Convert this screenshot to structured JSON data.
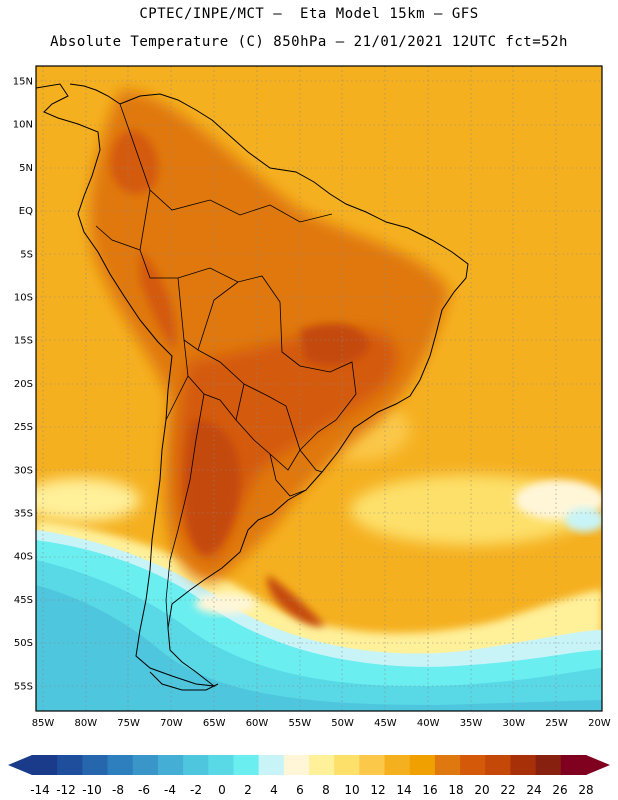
{
  "header": {
    "line1": "CPTEC/INPE/MCT –  Eta Model 15km – GFS",
    "line2": "Absolute Temperature (C) 850hPa – 21/01/2021 12UTC fct=52h"
  },
  "map": {
    "lat_labels": [
      "15N",
      "10N",
      "5N",
      "EQ",
      "5S",
      "10S",
      "15S",
      "20S",
      "25S",
      "30S",
      "35S",
      "40S",
      "45S",
      "50S",
      "55S"
    ],
    "lon_labels": [
      "85W",
      "80W",
      "75W",
      "70W",
      "65W",
      "60W",
      "55W",
      "50W",
      "45W",
      "40W",
      "35W",
      "30W",
      "25W",
      "20W"
    ],
    "grid": "dotted"
  },
  "colorbar": {
    "ticks": [
      "-14",
      "-12",
      "-10",
      "-8",
      "-6",
      "-4",
      "-2",
      "0",
      "2",
      "4",
      "6",
      "8",
      "10",
      "12",
      "14",
      "16",
      "18",
      "20",
      "22",
      "24",
      "26",
      "28"
    ],
    "colors": [
      "#1a3a8a",
      "#1f4f9c",
      "#2566ad",
      "#2e7fbe",
      "#3a95c9",
      "#44aed4",
      "#4ec6dd",
      "#59d8e6",
      "#6aeef0",
      "#c8f4f8",
      "#fff6d8",
      "#fff09a",
      "#fde06a",
      "#fbc84a",
      "#f5b020",
      "#f0a000",
      "#e07810",
      "#d45a0a",
      "#c44808",
      "#a83008",
      "#882010",
      "#800020"
    ]
  }
}
